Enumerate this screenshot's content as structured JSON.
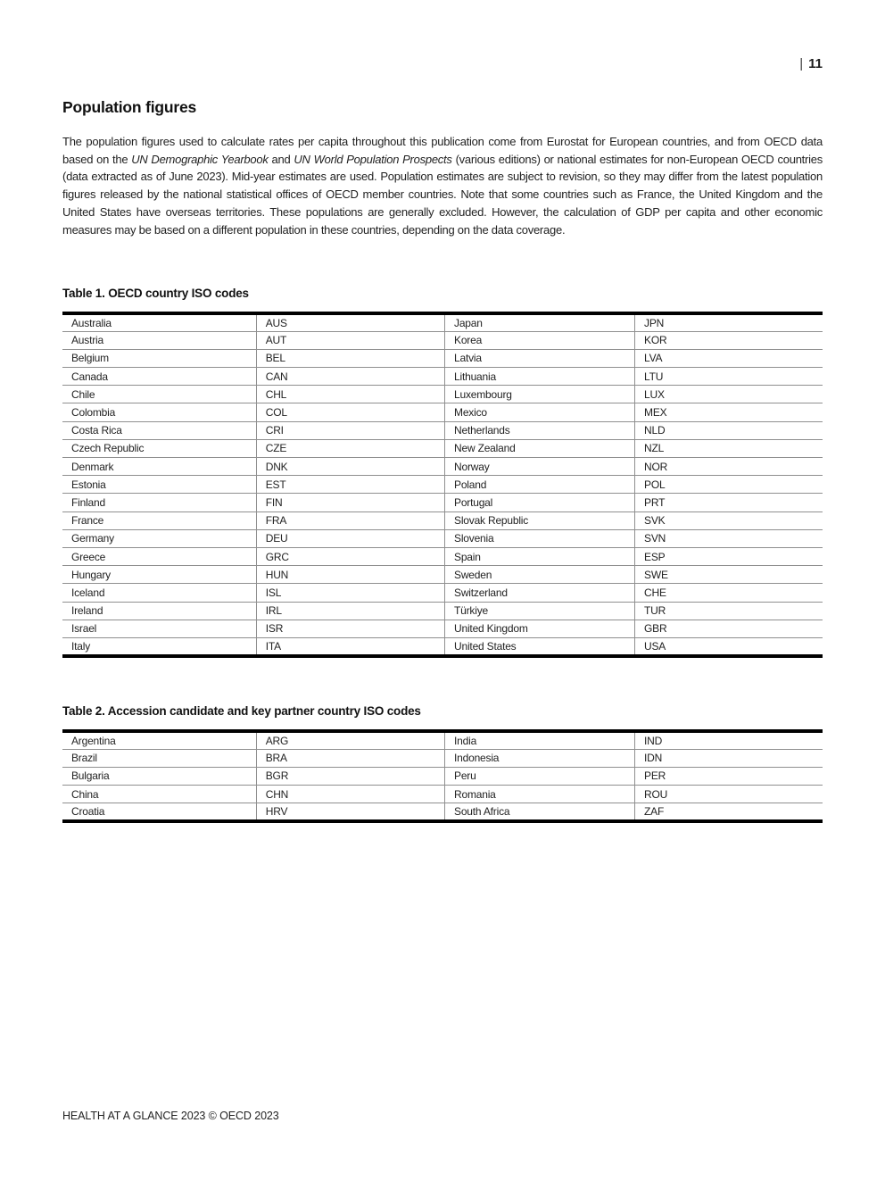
{
  "page": {
    "number": "11",
    "number_separator": "|",
    "footer": "HEALTH AT A GLANCE 2023 © OECD 2023"
  },
  "section": {
    "heading": "Population figures"
  },
  "paragraph": {
    "part1": "The population figures used to calculate rates per capita throughout this publication come from Eurostat for European countries, and from OECD data based on the ",
    "italic1": "UN Demographic Yearbook",
    "part2": " and ",
    "italic2": "UN World Population Prospects",
    "part3": " (various editions) or national estimates for non-European OECD countries (data extracted as of June 2023). Mid-year estimates are used. Population estimates are subject to revision, so they may differ from the latest population figures released by the national statistical offices of OECD member countries. Note that some countries such as France, the United Kingdom and the United States have overseas territories. These populations are generally excluded. However, the calculation of GDP per capita and other economic measures may be based on a different population in these countries, depending on the data coverage."
  },
  "table1": {
    "title": "Table 1. OECD country ISO codes",
    "rows": [
      [
        "Australia",
        "AUS",
        "Japan",
        "JPN"
      ],
      [
        "Austria",
        "AUT",
        "Korea",
        "KOR"
      ],
      [
        "Belgium",
        "BEL",
        "Latvia",
        "LVA"
      ],
      [
        "Canada",
        "CAN",
        "Lithuania",
        "LTU"
      ],
      [
        "Chile",
        "CHL",
        "Luxembourg",
        "LUX"
      ],
      [
        "Colombia",
        "COL",
        "Mexico",
        "MEX"
      ],
      [
        "Costa Rica",
        "CRI",
        "Netherlands",
        "NLD"
      ],
      [
        "Czech Republic",
        "CZE",
        "New Zealand",
        "NZL"
      ],
      [
        "Denmark",
        "DNK",
        "Norway",
        "NOR"
      ],
      [
        "Estonia",
        "EST",
        "Poland",
        "POL"
      ],
      [
        "Finland",
        "FIN",
        "Portugal",
        "PRT"
      ],
      [
        "France",
        "FRA",
        "Slovak Republic",
        "SVK"
      ],
      [
        "Germany",
        "DEU",
        "Slovenia",
        "SVN"
      ],
      [
        "Greece",
        "GRC",
        "Spain",
        "ESP"
      ],
      [
        "Hungary",
        "HUN",
        "Sweden",
        "SWE"
      ],
      [
        "Iceland",
        "ISL",
        "Switzerland",
        "CHE"
      ],
      [
        "Ireland",
        "IRL",
        "Türkiye",
        "TUR"
      ],
      [
        "Israel",
        "ISR",
        "United Kingdom",
        "GBR"
      ],
      [
        "Italy",
        "ITA",
        "United States",
        "USA"
      ]
    ]
  },
  "table2": {
    "title": "Table 2. Accession candidate and key partner country ISO codes",
    "rows": [
      [
        "Argentina",
        "ARG",
        "India",
        "IND"
      ],
      [
        "Brazil",
        "BRA",
        "Indonesia",
        "IDN"
      ],
      [
        "Bulgaria",
        "BGR",
        "Peru",
        "PER"
      ],
      [
        "China",
        "CHN",
        "Romania",
        "ROU"
      ],
      [
        "Croatia",
        "HRV",
        "South Africa",
        "ZAF"
      ]
    ]
  }
}
